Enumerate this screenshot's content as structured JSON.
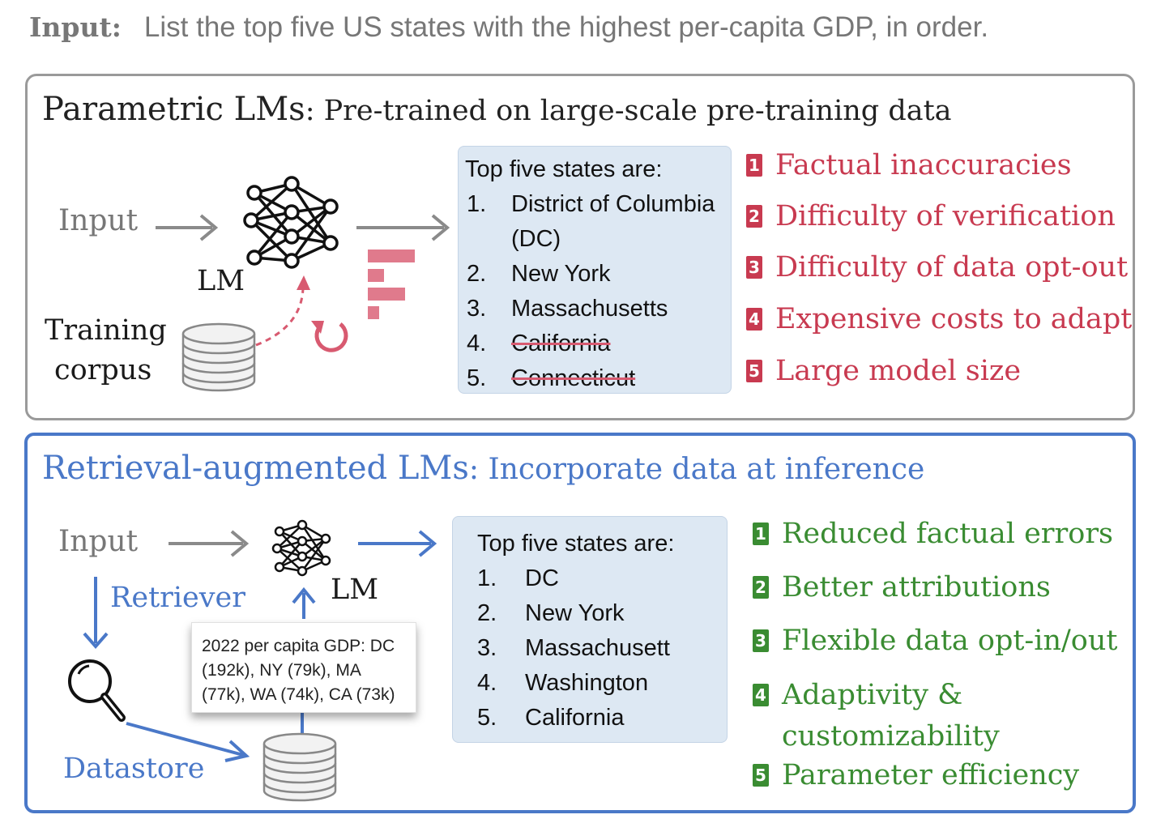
{
  "input_line": {
    "label": "Input:",
    "text": "List the top five US states with the highest per-capita GDP, in order."
  },
  "parametric": {
    "title": "Parametric LMs",
    "subtitle": ": Pre-trained  on large-scale pre-training data",
    "input_label": "Input",
    "lm_label": "LM",
    "corpus_label_1": "Training",
    "corpus_label_2": "corpus",
    "answer": {
      "header": "Top five states are:",
      "items": [
        {
          "num": "1.",
          "text": "District of Columbia",
          "text2": "(DC)",
          "struck": false
        },
        {
          "num": "2.",
          "text": "New York",
          "struck": false
        },
        {
          "num": "3.",
          "text": "Massachusetts",
          "struck": false
        },
        {
          "num": "4.",
          "text": "California",
          "struck": true
        },
        {
          "num": "5.",
          "text": "Connecticut",
          "struck": true
        }
      ]
    },
    "issues": [
      {
        "badge": "1",
        "text": "Factual inaccuracies"
      },
      {
        "badge": "2",
        "text": "Difficulty of verification"
      },
      {
        "badge": "3",
        "text": "Difficulty of data opt-out"
      },
      {
        "badge": "4",
        "text": "Expensive costs to adapt"
      },
      {
        "badge": "5",
        "text": "Large model size"
      }
    ],
    "colors": {
      "issue": "#c83a50",
      "border": "#9a9a9a"
    }
  },
  "rag": {
    "title": "Retrieval-augmented LMs",
    "subtitle": ": Incorporate data at inference",
    "input_label": "Input",
    "retriever_label": "Retriever",
    "lm_label": "LM",
    "datastore_label": "Datastore",
    "snippet": "2022 per capita GDP: DC (192k), NY (79k), MA (77k), WA (74k), CA (73k)",
    "answer": {
      "header": "Top five states are:",
      "items": [
        {
          "num": "1.",
          "text": "DC"
        },
        {
          "num": "2.",
          "text": "New York"
        },
        {
          "num": "3.",
          "text": "Massachusett"
        },
        {
          "num": "4.",
          "text": "Washington"
        },
        {
          "num": "5.",
          "text": "California"
        }
      ]
    },
    "benefits": [
      {
        "badge": "1",
        "text": "Reduced factual errors"
      },
      {
        "badge": "2",
        "text": "Better attributions"
      },
      {
        "badge": "3",
        "text": "Flexible data opt-in/out"
      },
      {
        "badge": "4",
        "text": "Adaptivity &",
        "text2": "customizability"
      },
      {
        "badge": "5",
        "text": "Parameter efficiency"
      }
    ],
    "colors": {
      "benefit": "#3a8c32",
      "border": "#4a78c8"
    }
  }
}
